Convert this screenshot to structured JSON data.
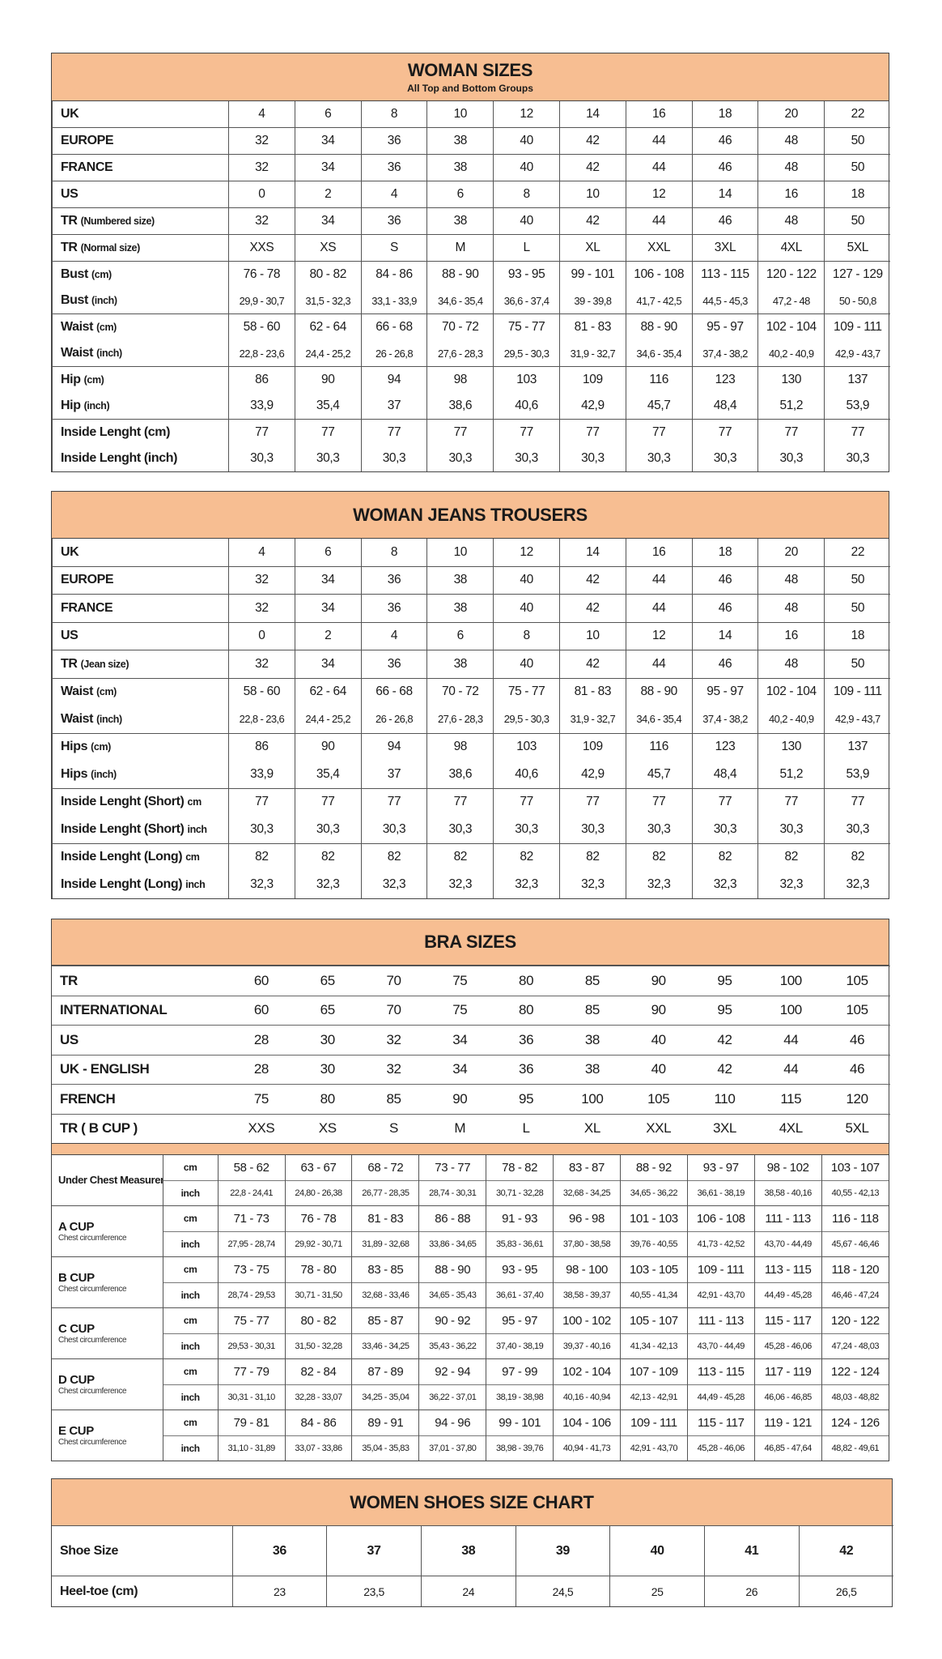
{
  "woman_sizes": {
    "title": "WOMAN SIZES",
    "subtitle": "All Top and Bottom Groups",
    "groups": [
      [
        {
          "main": "UK",
          "sub": "",
          "values": [
            "4",
            "6",
            "8",
            "10",
            "12",
            "14",
            "16",
            "18",
            "20",
            "22"
          ]
        }
      ],
      [
        {
          "main": "EUROPE",
          "sub": "",
          "values": [
            "32",
            "34",
            "36",
            "38",
            "40",
            "42",
            "44",
            "46",
            "48",
            "50"
          ]
        }
      ],
      [
        {
          "main": "FRANCE",
          "sub": "",
          "values": [
            "32",
            "34",
            "36",
            "38",
            "40",
            "42",
            "44",
            "46",
            "48",
            "50"
          ]
        }
      ],
      [
        {
          "main": "US",
          "sub": "",
          "values": [
            "0",
            "2",
            "4",
            "6",
            "8",
            "10",
            "12",
            "14",
            "16",
            "18"
          ]
        }
      ],
      [
        {
          "main": "TR",
          "sub": "(Numbered size)",
          "values": [
            "32",
            "34",
            "36",
            "38",
            "40",
            "42",
            "44",
            "46",
            "48",
            "50"
          ]
        }
      ],
      [
        {
          "main": "TR",
          "sub": "(Normal size)",
          "values": [
            "XXS",
            "XS",
            "S",
            "M",
            "L",
            "XL",
            "XXL",
            "3XL",
            "4XL",
            "5XL"
          ]
        }
      ],
      [
        {
          "main": "Bust",
          "sub": "(cm)",
          "values": [
            "76 - 78",
            "80 - 82",
            "84 - 86",
            "88 - 90",
            "93 - 95",
            "99 - 101",
            "106 - 108",
            "113 - 115",
            "120 - 122",
            "127 - 129"
          ]
        },
        {
          "main": "Bust",
          "sub": "(inch)",
          "small": true,
          "values": [
            "29,9 - 30,7",
            "31,5 - 32,3",
            "33,1 - 33,9",
            "34,6 - 35,4",
            "36,6 - 37,4",
            "39 - 39,8",
            "41,7 - 42,5",
            "44,5 - 45,3",
            "47,2 - 48",
            "50 - 50,8"
          ]
        }
      ],
      [
        {
          "main": "Waist",
          "sub": "(cm)",
          "values": [
            "58 - 60",
            "62 - 64",
            "66 - 68",
            "70 - 72",
            "75 - 77",
            "81 - 83",
            "88 - 90",
            "95 - 97",
            "102 - 104",
            "109 - 111"
          ]
        },
        {
          "main": "Waist",
          "sub": "(inch)",
          "small": true,
          "values": [
            "22,8 - 23,6",
            "24,4 - 25,2",
            "26 - 26,8",
            "27,6 - 28,3",
            "29,5 - 30,3",
            "31,9 - 32,7",
            "34,6 - 35,4",
            "37,4 - 38,2",
            "40,2 - 40,9",
            "42,9 - 43,7"
          ]
        }
      ],
      [
        {
          "main": "Hip",
          "sub": "(cm)",
          "values": [
            "86",
            "90",
            "94",
            "98",
            "103",
            "109",
            "116",
            "123",
            "130",
            "137"
          ]
        },
        {
          "main": "Hip",
          "sub": "(inch)",
          "values": [
            "33,9",
            "35,4",
            "37",
            "38,6",
            "40,6",
            "42,9",
            "45,7",
            "48,4",
            "51,2",
            "53,9"
          ]
        }
      ],
      [
        {
          "main": "Inside Lenght (cm)",
          "sub": "",
          "values": [
            "77",
            "77",
            "77",
            "77",
            "77",
            "77",
            "77",
            "77",
            "77",
            "77"
          ]
        },
        {
          "main": "Inside Lenght (inch)",
          "sub": "",
          "values": [
            "30,3",
            "30,3",
            "30,3",
            "30,3",
            "30,3",
            "30,3",
            "30,3",
            "30,3",
            "30,3",
            "30,3"
          ]
        }
      ]
    ]
  },
  "jeans": {
    "title": "WOMAN JEANS TROUSERS",
    "groups": [
      [
        {
          "main": "UK",
          "sub": "",
          "values": [
            "4",
            "6",
            "8",
            "10",
            "12",
            "14",
            "16",
            "18",
            "20",
            "22"
          ]
        }
      ],
      [
        {
          "main": "EUROPE",
          "sub": "",
          "values": [
            "32",
            "34",
            "36",
            "38",
            "40",
            "42",
            "44",
            "46",
            "48",
            "50"
          ]
        }
      ],
      [
        {
          "main": "FRANCE",
          "sub": "",
          "values": [
            "32",
            "34",
            "36",
            "38",
            "40",
            "42",
            "44",
            "46",
            "48",
            "50"
          ]
        }
      ],
      [
        {
          "main": "US",
          "sub": "",
          "values": [
            "0",
            "2",
            "4",
            "6",
            "8",
            "10",
            "12",
            "14",
            "16",
            "18"
          ]
        }
      ],
      [
        {
          "main": "TR",
          "sub": "(Jean size)",
          "values": [
            "32",
            "34",
            "36",
            "38",
            "40",
            "42",
            "44",
            "46",
            "48",
            "50"
          ]
        }
      ],
      [
        {
          "main": "Waist",
          "sub": "(cm)",
          "values": [
            "58 - 60",
            "62 - 64",
            "66 - 68",
            "70 - 72",
            "75 - 77",
            "81 - 83",
            "88 - 90",
            "95 - 97",
            "102 - 104",
            "109 - 111"
          ]
        },
        {
          "main": "Waist",
          "sub": "(inch)",
          "small": true,
          "values": [
            "22,8 - 23,6",
            "24,4 - 25,2",
            "26 - 26,8",
            "27,6 - 28,3",
            "29,5 - 30,3",
            "31,9 - 32,7",
            "34,6 - 35,4",
            "37,4 - 38,2",
            "40,2 - 40,9",
            "42,9 - 43,7"
          ]
        }
      ],
      [
        {
          "main": "Hips",
          "sub": "(cm)",
          "values": [
            "86",
            "90",
            "94",
            "98",
            "103",
            "109",
            "116",
            "123",
            "130",
            "137"
          ]
        },
        {
          "main": "Hips",
          "sub": "(inch)",
          "values": [
            "33,9",
            "35,4",
            "37",
            "38,6",
            "40,6",
            "42,9",
            "45,7",
            "48,4",
            "51,2",
            "53,9"
          ]
        }
      ],
      [
        {
          "main": "Inside Lenght (Short)",
          "sub": "cm",
          "values": [
            "77",
            "77",
            "77",
            "77",
            "77",
            "77",
            "77",
            "77",
            "77",
            "77"
          ]
        },
        {
          "main": "Inside Lenght (Short)",
          "sub": "inch",
          "values": [
            "30,3",
            "30,3",
            "30,3",
            "30,3",
            "30,3",
            "30,3",
            "30,3",
            "30,3",
            "30,3",
            "30,3"
          ]
        }
      ],
      [
        {
          "main": "Inside Lenght (Long)",
          "sub": "cm",
          "values": [
            "82",
            "82",
            "82",
            "82",
            "82",
            "82",
            "82",
            "82",
            "82",
            "82"
          ]
        },
        {
          "main": "Inside Lenght (Long)",
          "sub": "inch",
          "values": [
            "32,3",
            "32,3",
            "32,3",
            "32,3",
            "32,3",
            "32,3",
            "32,3",
            "32,3",
            "32,3",
            "32,3"
          ]
        }
      ]
    ]
  },
  "bra": {
    "title": "BRA SIZES",
    "top_rows": [
      {
        "label": "TR",
        "values": [
          "60",
          "65",
          "70",
          "75",
          "80",
          "85",
          "90",
          "95",
          "100",
          "105"
        ]
      },
      {
        "label": "INTERNATIONAL",
        "values": [
          "60",
          "65",
          "70",
          "75",
          "80",
          "85",
          "90",
          "95",
          "100",
          "105"
        ]
      },
      {
        "label": "US",
        "values": [
          "28",
          "30",
          "32",
          "34",
          "36",
          "38",
          "40",
          "42",
          "44",
          "46"
        ]
      },
      {
        "label": "UK - ENGLISH",
        "values": [
          "28",
          "30",
          "32",
          "34",
          "36",
          "38",
          "40",
          "42",
          "44",
          "46"
        ]
      },
      {
        "label": "FRENCH",
        "values": [
          "75",
          "80",
          "85",
          "90",
          "95",
          "100",
          "105",
          "110",
          "115",
          "120"
        ]
      },
      {
        "label": "TR ( B CUP )",
        "values": [
          "XXS",
          "XS",
          "S",
          "M",
          "L",
          "XL",
          "XXL",
          "3XL",
          "4XL",
          "5XL"
        ]
      }
    ],
    "unit_cm": "cm",
    "unit_inch": "inch",
    "groups": [
      {
        "label": "Under Chest Measurement",
        "sublabel": "",
        "cm": [
          "58 - 62",
          "63 - 67",
          "68 - 72",
          "73 - 77",
          "78 - 82",
          "83 - 87",
          "88 - 92",
          "93 - 97",
          "98 - 102",
          "103 - 107"
        ],
        "inch": [
          "22,8 - 24,41",
          "24,80 - 26,38",
          "26,77 - 28,35",
          "28,74 - 30,31",
          "30,71 - 32,28",
          "32,68 - 34,25",
          "34,65 - 36,22",
          "36,61 - 38,19",
          "38,58 - 40,16",
          "40,55 - 42,13"
        ]
      },
      {
        "label": "A CUP",
        "sublabel": "Chest circumference",
        "cm": [
          "71 - 73",
          "76 - 78",
          "81 - 83",
          "86 - 88",
          "91 - 93",
          "96 - 98",
          "101 - 103",
          "106 - 108",
          "111 - 113",
          "116 - 118"
        ],
        "inch": [
          "27,95 - 28,74",
          "29,92 - 30,71",
          "31,89 - 32,68",
          "33,86 - 34,65",
          "35,83 - 36,61",
          "37,80 - 38,58",
          "39,76 - 40,55",
          "41,73 - 42,52",
          "43,70 - 44,49",
          "45,67 - 46,46"
        ]
      },
      {
        "label": "B CUP",
        "sublabel": "Chest circumference",
        "cm": [
          "73 - 75",
          "78 - 80",
          "83 - 85",
          "88 - 90",
          "93 - 95",
          "98 - 100",
          "103 - 105",
          "109 - 111",
          "113 - 115",
          "118 - 120"
        ],
        "inch": [
          "28,74 - 29,53",
          "30,71 - 31,50",
          "32,68 - 33,46",
          "34,65 - 35,43",
          "36,61 - 37,40",
          "38,58 - 39,37",
          "40,55 - 41,34",
          "42,91 - 43,70",
          "44,49 - 45,28",
          "46,46 - 47,24"
        ]
      },
      {
        "label": "C CUP",
        "sublabel": "Chest circumference",
        "cm": [
          "75 - 77",
          "80 - 82",
          "85 - 87",
          "90 - 92",
          "95 - 97",
          "100 - 102",
          "105 - 107",
          "111 - 113",
          "115 - 117",
          "120 - 122"
        ],
        "inch": [
          "29,53 - 30,31",
          "31,50 - 32,28",
          "33,46 - 34,25",
          "35,43 - 36,22",
          "37,40 - 38,19",
          "39,37 - 40,16",
          "41,34 - 42,13",
          "43,70 - 44,49",
          "45,28 - 46,06",
          "47,24 - 48,03"
        ]
      },
      {
        "label": "D CUP",
        "sublabel": "Chest circumference",
        "cm": [
          "77 - 79",
          "82 - 84",
          "87 - 89",
          "92 - 94",
          "97 - 99",
          "102 - 104",
          "107 - 109",
          "113 - 115",
          "117 - 119",
          "122 - 124"
        ],
        "inch": [
          "30,31 - 31,10",
          "32,28 - 33,07",
          "34,25 - 35,04",
          "36,22 - 37,01",
          "38,19 - 38,98",
          "40,16 - 40,94",
          "42,13 - 42,91",
          "44,49 - 45,28",
          "46,06 - 46,85",
          "48,03 - 48,82"
        ]
      },
      {
        "label": "E CUP",
        "sublabel": "Chest circumference",
        "cm": [
          "79 - 81",
          "84 - 86",
          "89 - 91",
          "94 - 96",
          "99 - 101",
          "104 - 106",
          "109 - 111",
          "115 - 117",
          "119 - 121",
          "124 - 126"
        ],
        "inch": [
          "31,10 - 31,89",
          "33,07 - 33,86",
          "35,04 - 35,83",
          "37,01 - 37,80",
          "38,98 - 39,76",
          "40,94 - 41,73",
          "42,91 - 43,70",
          "45,28 - 46,06",
          "46,85 - 47,64",
          "48,82 - 49,61"
        ]
      }
    ]
  },
  "shoes": {
    "title": "WOMEN SHOES SIZE CHART",
    "rows": [
      {
        "label": "Shoe Size",
        "values": [
          "36",
          "37",
          "38",
          "39",
          "40",
          "41",
          "42"
        ]
      },
      {
        "label": "Heel-toe (cm)",
        "values": [
          "23",
          "23,5",
          "24",
          "24,5",
          "25",
          "26",
          "26,5"
        ]
      }
    ]
  },
  "colors": {
    "header_fill": "#F7BE92",
    "border": "#444444"
  }
}
